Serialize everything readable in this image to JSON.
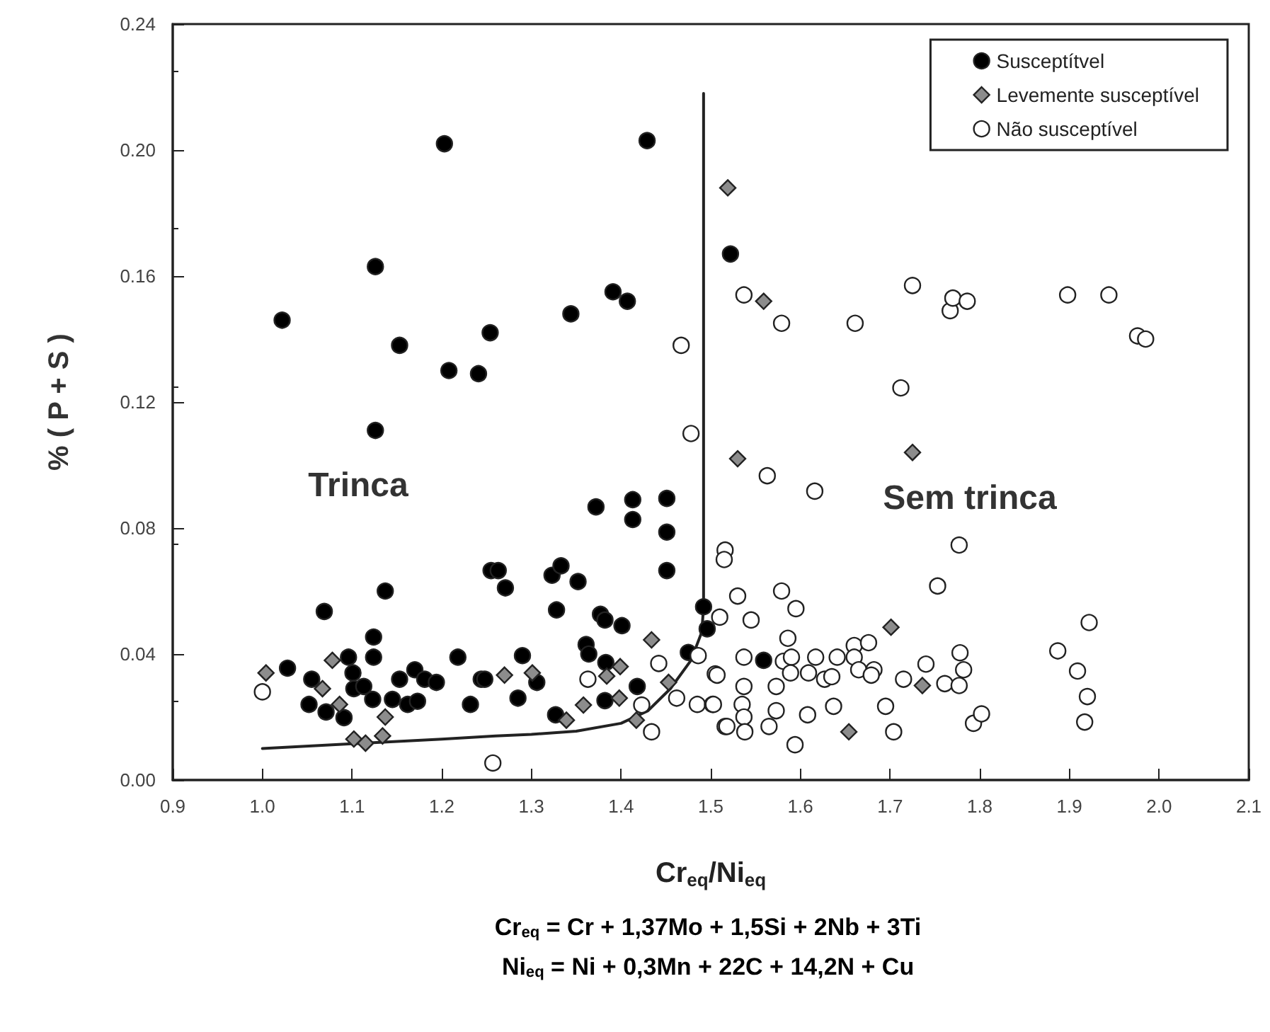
{
  "chart_data": {
    "type": "scatter",
    "xlabel": "Cr$_{eq}$/Ni$_{eq}$",
    "ylabel": "% ( P + S )",
    "xlim": [
      0.9,
      2.1
    ],
    "ylim": [
      0,
      0.24
    ],
    "xticks": [
      {
        "value": 0.9,
        "label": "0.9"
      },
      {
        "value": 1.0,
        "label": "1.0"
      },
      {
        "value": 1.1,
        "label": "1.1"
      },
      {
        "value": 1.2,
        "label": "1.2"
      },
      {
        "value": 1.3,
        "label": "1.3"
      },
      {
        "value": 1.4,
        "label": "1.4"
      },
      {
        "value": 1.5,
        "label": "1.5"
      },
      {
        "value": 1.6,
        "label": "1.6"
      },
      {
        "value": 1.7,
        "label": "1.7"
      },
      {
        "value": 1.8,
        "label": "1.8"
      },
      {
        "value": 1.9,
        "label": "1.9"
      },
      {
        "value": 2.0,
        "label": "2.0"
      },
      {
        "value": 2.1,
        "label": "2.1"
      }
    ],
    "yticks": [
      {
        "value": 0,
        "label": "0.00"
      },
      {
        "value": 0.04,
        "label": "0.04"
      },
      {
        "value": 0.08,
        "label": "0.08"
      },
      {
        "value": 0.12,
        "label": "0.12"
      },
      {
        "value": 0.16,
        "label": "0.16"
      },
      {
        "value": 0.2,
        "label": "0.20"
      },
      {
        "value": 0.24,
        "label": "0.24"
      }
    ],
    "grid": false,
    "legend": "top right",
    "annotations": [
      "Trinca",
      "Sem trinca",
      "Cr$_{eq}$ = Cr + 1,37Mo + 1,5Si + 2Nb + 3Ti",
      "Ni$_{eq}$ = Ni + 0,3Mn + 22C + 14,2N + Cu"
    ],
    "series": [
      {
        "name": "Susceptítvel",
        "marker": "circle",
        "color": "#000000",
        "x": [
          1.203,
          1.429,
          1.126,
          1.022,
          1.153,
          1.254,
          1.208,
          1.241,
          1.344,
          1.391,
          1.407,
          1.126,
          1.522,
          1.069,
          1.137,
          1.124,
          1.124,
          1.096,
          1.028,
          1.055,
          1.101,
          1.102,
          1.113,
          1.153,
          1.17,
          1.181,
          1.194,
          1.218,
          1.244,
          1.232,
          1.123,
          1.145,
          1.162,
          1.173,
          1.052,
          1.071,
          1.091,
          1.255,
          1.372,
          1.413,
          1.413,
          1.451,
          1.451,
          1.451,
          1.263,
          1.271,
          1.328,
          1.323,
          1.333,
          1.352,
          1.377,
          1.382,
          1.401,
          1.361,
          1.364,
          1.29,
          1.248,
          1.306,
          1.285,
          1.383,
          1.382,
          1.418,
          1.327,
          1.492,
          1.496,
          1.475,
          1.559
        ],
        "values": [
          0.202,
          0.203,
          0.163,
          0.146,
          0.138,
          0.142,
          0.13,
          0.129,
          0.148,
          0.155,
          0.152,
          0.111,
          0.167,
          0.0535,
          0.06,
          0.0454,
          0.039,
          0.039,
          0.0355,
          0.032,
          0.034,
          0.029,
          0.0297,
          0.032,
          0.035,
          0.032,
          0.031,
          0.039,
          0.032,
          0.024,
          0.0256,
          0.0256,
          0.024,
          0.025,
          0.024,
          0.0216,
          0.0198,
          0.0665,
          0.0867,
          0.089,
          0.0827,
          0.0894,
          0.0787,
          0.0665,
          0.0665,
          0.061,
          0.054,
          0.065,
          0.068,
          0.063,
          0.0526,
          0.0508,
          0.049,
          0.043,
          0.04,
          0.0395,
          0.032,
          0.031,
          0.026,
          0.0373,
          0.0252,
          0.0297,
          0.0207,
          0.055,
          0.048,
          0.0405,
          0.038
        ]
      },
      {
        "name": "Levemente susceptível",
        "marker": "diamond",
        "color": "#8c8c8c",
        "x": [
          1.519,
          1.559,
          1.53,
          1.725,
          1.004,
          1.078,
          1.067,
          1.086,
          1.137,
          1.102,
          1.115,
          1.134,
          1.27,
          1.301,
          1.434,
          1.399,
          1.384,
          1.398,
          1.358,
          1.339,
          1.453,
          1.417,
          1.736,
          1.654,
          1.701
        ],
        "values": [
          0.188,
          0.152,
          0.102,
          0.104,
          0.034,
          0.038,
          0.029,
          0.024,
          0.02,
          0.013,
          0.0117,
          0.014,
          0.0333,
          0.034,
          0.0445,
          0.036,
          0.033,
          0.026,
          0.0238,
          0.019,
          0.031,
          0.019,
          0.03,
          0.0153,
          0.0485
        ]
      },
      {
        "name": "Não susceptível",
        "marker": "circle",
        "color": "#ffffff",
        "x": [
          1.467,
          1.478,
          1.537,
          1.579,
          1.661,
          1.725,
          1.767,
          1.77,
          1.786,
          1.898,
          1.944,
          1.976,
          1.985,
          1.712,
          1.563,
          1.616,
          1.0,
          1.257,
          1.363,
          1.442,
          1.423,
          1.434,
          1.462,
          1.485,
          1.502,
          1.505,
          1.486,
          1.51,
          1.516,
          1.516,
          1.515,
          1.777,
          1.53,
          1.579,
          1.595,
          1.753,
          1.545,
          1.586,
          1.537,
          1.581,
          1.59,
          1.617,
          1.641,
          1.66,
          1.676,
          1.66,
          1.507,
          1.589,
          1.609,
          1.627,
          1.635,
          1.665,
          1.682,
          1.679,
          1.715,
          1.761,
          1.777,
          1.782,
          1.778,
          1.74,
          1.537,
          1.573,
          1.503,
          1.535,
          1.537,
          1.538,
          1.518,
          1.565,
          1.573,
          1.608,
          1.637,
          1.695,
          1.594,
          1.704,
          1.793,
          1.802,
          1.887,
          1.922,
          1.909,
          1.92,
          1.917
        ],
        "values": [
          0.138,
          0.11,
          0.154,
          0.145,
          0.145,
          0.157,
          0.149,
          0.153,
          0.152,
          0.154,
          0.154,
          0.141,
          0.14,
          0.1245,
          0.0966,
          0.0917,
          0.028,
          0.0054,
          0.032,
          0.037,
          0.0238,
          0.0153,
          0.026,
          0.024,
          0.024,
          0.0337,
          0.0395,
          0.0517,
          0.017,
          0.073,
          0.07,
          0.0746,
          0.0584,
          0.06,
          0.0544,
          0.0616,
          0.0508,
          0.045,
          0.039,
          0.0377,
          0.039,
          0.039,
          0.039,
          0.0427,
          0.0436,
          0.039,
          0.0333,
          0.034,
          0.034,
          0.032,
          0.0328,
          0.035,
          0.035,
          0.0333,
          0.032,
          0.0306,
          0.03,
          0.035,
          0.0404,
          0.0368,
          0.0297,
          0.0297,
          0.024,
          0.024,
          0.02,
          0.0153,
          0.017,
          0.017,
          0.022,
          0.0207,
          0.0234,
          0.0234,
          0.0112,
          0.0153,
          0.018,
          0.021,
          0.041,
          0.05,
          0.0346,
          0.0265,
          0.0184
        ]
      },
      {
        "type": "line",
        "marker": "none",
        "line_style": "solid",
        "color": "#222222",
        "x": [
          1.0,
          1.1,
          1.2,
          1.26,
          1.3,
          1.35,
          1.4,
          1.43,
          1.455,
          1.478,
          1.49,
          1.492,
          1.492
        ],
        "values": [
          0.01,
          0.0115,
          0.013,
          0.014,
          0.0145,
          0.0155,
          0.018,
          0.022,
          0.029,
          0.038,
          0.047,
          0.055,
          0.218
        ]
      }
    ]
  }
}
